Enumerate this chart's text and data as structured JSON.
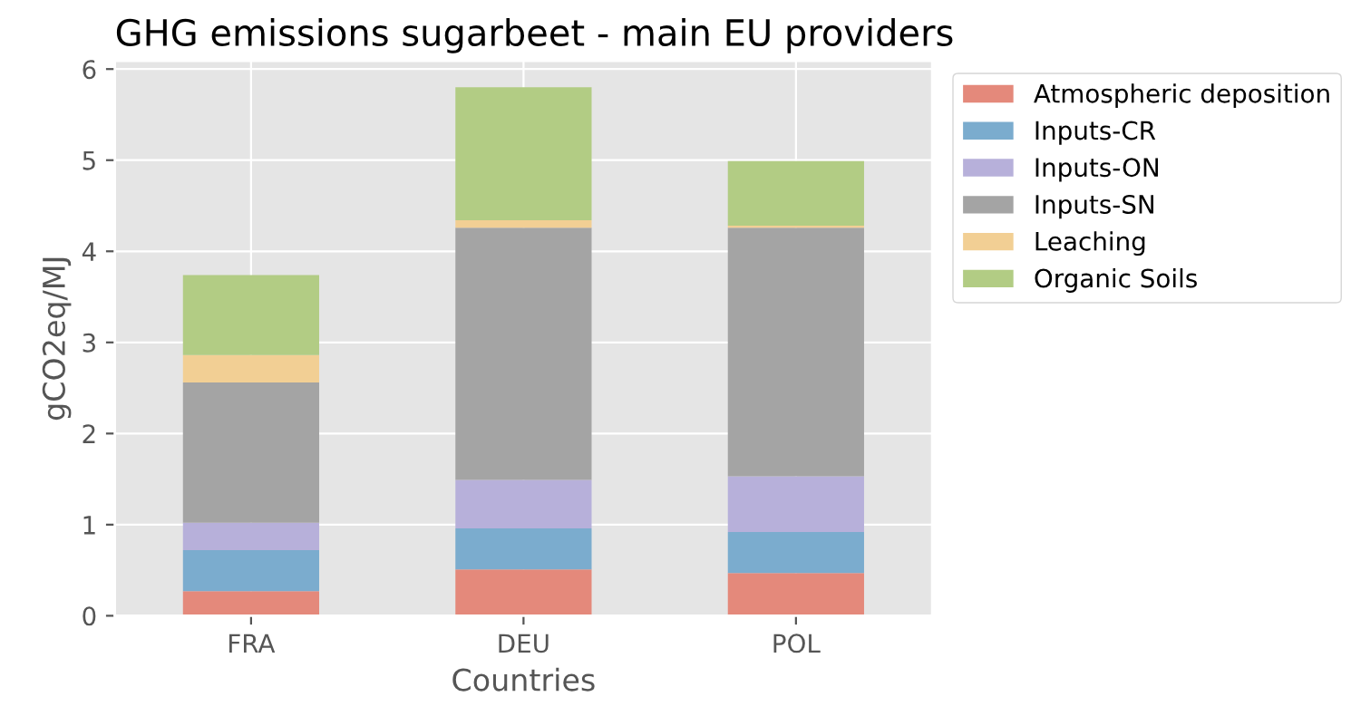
{
  "chart_data": {
    "type": "bar",
    "title": "GHG emissions sugarbeet - main EU providers",
    "xlabel": "Countries",
    "ylabel": "gCO2eq/MJ",
    "categories": [
      "FRA",
      "DEU",
      "POL"
    ],
    "stacked": true,
    "series": [
      {
        "name": "Atmospheric deposition",
        "color": "#e4897b",
        "values": [
          0.27,
          0.51,
          0.47
        ]
      },
      {
        "name": "Inputs-CR",
        "color": "#7bacce",
        "values": [
          0.45,
          0.45,
          0.45
        ]
      },
      {
        "name": "Inputs-ON",
        "color": "#b7b0da",
        "values": [
          0.3,
          0.53,
          0.61
        ]
      },
      {
        "name": "Inputs-SN",
        "color": "#a4a4a4",
        "values": [
          1.54,
          2.77,
          2.73
        ]
      },
      {
        "name": "Leaching",
        "color": "#f2cf94",
        "values": [
          0.3,
          0.08,
          0.02
        ]
      },
      {
        "name": "Organic Soils",
        "color": "#b2cc84",
        "values": [
          0.88,
          1.46,
          0.71
        ]
      }
    ],
    "ylim": [
      0,
      6.09
    ],
    "yticks": [
      0,
      1,
      2,
      3,
      4,
      5,
      6
    ],
    "grid": true,
    "legend": "top right"
  }
}
